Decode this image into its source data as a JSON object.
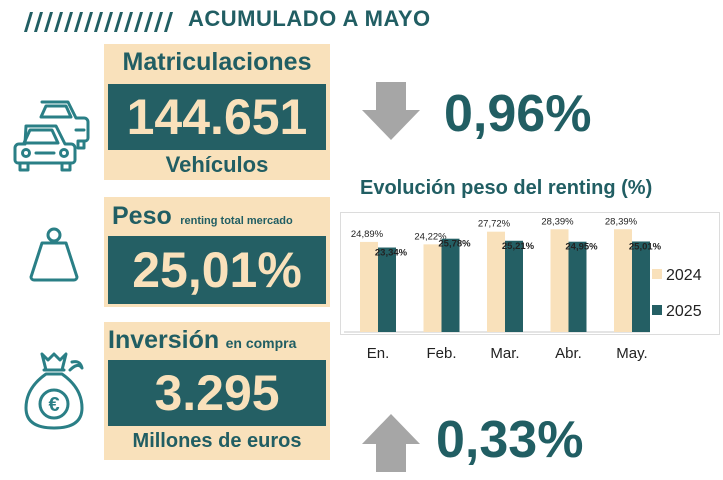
{
  "header": {
    "title": "ACUMULADO A MAYO"
  },
  "matriculaciones": {
    "label": "Matriculaciones",
    "value": "144.651",
    "unit": "Vehículos",
    "change": "0,96%",
    "direction": "down"
  },
  "peso": {
    "label": "Peso",
    "sublabel": "renting total mercado",
    "value": "25,01%"
  },
  "inversion": {
    "label": "Inversión",
    "sublabel": "en compra",
    "value": "3.295",
    "unit": "Millones de euros",
    "change": "0,33%",
    "direction": "up"
  },
  "icons": {
    "vehicles": "cars-icon",
    "weight": "weight-icon",
    "money": "money-bag-euro-icon"
  },
  "colors": {
    "teal": "#245f64",
    "cream": "#f9e1bb",
    "arrow_gray": "#a6a6a6"
  },
  "chart_data": {
    "type": "bar",
    "title": "Evolución peso del renting (%)",
    "categories": [
      "En.",
      "Feb.",
      "Mar.",
      "Abr.",
      "May."
    ],
    "series": [
      {
        "name": "2024",
        "values": [
          24.89,
          24.22,
          27.72,
          28.39,
          28.39
        ],
        "labels": [
          "24,89%",
          "24,22%",
          "27,72%",
          "28,39%",
          "28,39%"
        ],
        "color": "#f9e1bb"
      },
      {
        "name": "2025",
        "values": [
          23.34,
          25.78,
          25.21,
          24.95,
          25.01
        ],
        "labels": [
          "23,34%",
          "25,78%",
          "25,21%",
          "24,95%",
          "25,01%"
        ],
        "color": "#245f64"
      }
    ],
    "ylim": [
      0,
      30
    ],
    "legend": "right",
    "grid": false
  }
}
